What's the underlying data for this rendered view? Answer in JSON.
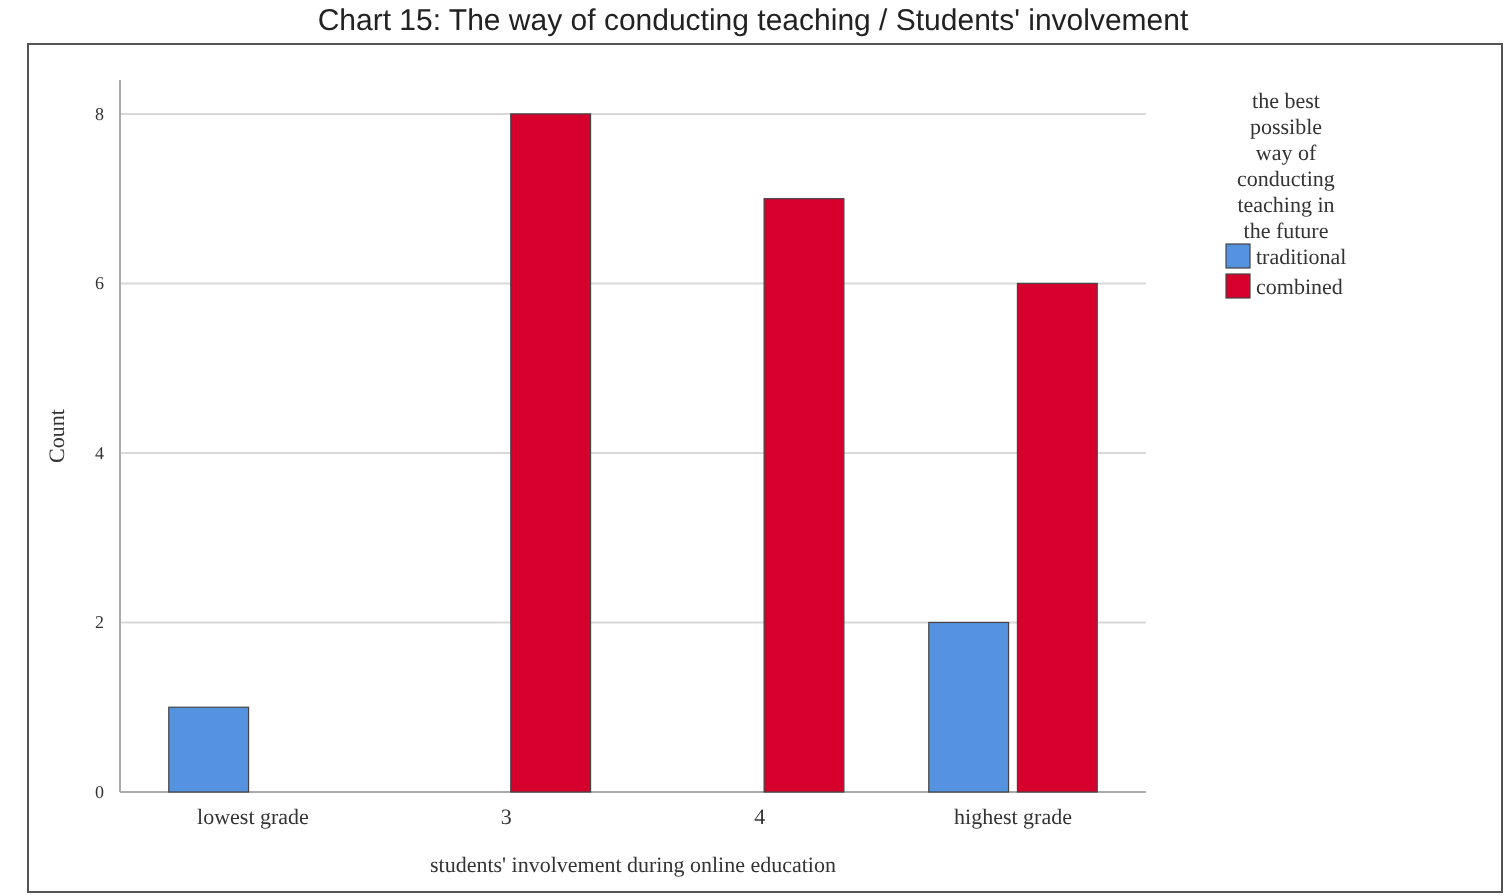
{
  "chart_data": {
    "type": "bar",
    "title": "Chart 15: The way of conducting teaching / Students' involvement",
    "xlabel": "students' involvement during online education",
    "ylabel": "Count",
    "legend_title": "the best possible way of conducting teaching in the future",
    "categories": [
      "lowest grade",
      "3",
      "4",
      "highest grade"
    ],
    "series": [
      {
        "name": "traditional",
        "color": "#5592e0",
        "values": [
          1,
          0,
          0,
          2
        ]
      },
      {
        "name": "combined",
        "color": "#d6002d",
        "values": [
          0,
          8,
          7,
          6
        ]
      }
    ],
    "ylim": [
      0,
      8.4
    ],
    "yticks": [
      0,
      2,
      4,
      6,
      8
    ],
    "grid": "y",
    "legend": "right"
  }
}
